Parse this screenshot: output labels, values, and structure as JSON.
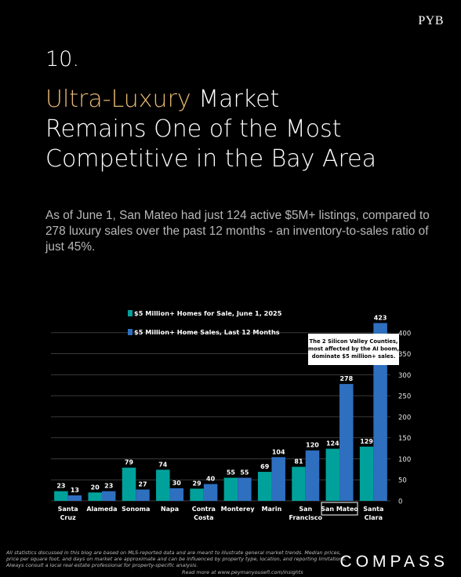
{
  "brand": {
    "top_logo": "PYB",
    "bottom_logo": "COMPASS"
  },
  "header": {
    "number": "10.",
    "title_accent": "Ultra-Luxury",
    "title_rest_1": " Market",
    "title_line2": "Remains One of the Most",
    "title_line3": "Competitive in the Bay Area"
  },
  "subtitle": "As of June 1, San Mateo had just 124 active $5M+ listings, compared to 278 luxury sales over the past 12 months - an inventory-to-sales ratio of just 45%.",
  "chart_data": {
    "type": "bar",
    "categories": [
      "Santa Cruz",
      "Alameda",
      "Sonoma",
      "Napa",
      "Contra Costa",
      "Monterey",
      "Marin",
      "San Francisco",
      "San Mateo",
      "Santa Clara"
    ],
    "category_lines": [
      [
        "Santa",
        "Cruz"
      ],
      [
        "Alameda"
      ],
      [
        "Sonoma"
      ],
      [
        "Napa"
      ],
      [
        "Contra",
        "Costa"
      ],
      [
        "Monterey"
      ],
      [
        "Marin"
      ],
      [
        "San",
        "Francisco"
      ],
      [
        "San Mateo"
      ],
      [
        "Santa",
        "Clara"
      ]
    ],
    "series": [
      {
        "name": "$5 Million+ Homes for Sale, June 1, 2025",
        "values": [
          23,
          20,
          79,
          74,
          29,
          55,
          69,
          81,
          124,
          129
        ],
        "color": "#00a19b"
      },
      {
        "name": "$5 Million+ Home Sales, Last 12 Months",
        "values": [
          13,
          23,
          27,
          30,
          40,
          55,
          104,
          120,
          278,
          423
        ],
        "color": "#2f6fbf"
      }
    ],
    "ylim": [
      0,
      450
    ],
    "yticks": [
      0,
      50,
      100,
      150,
      200,
      250,
      300,
      350,
      400
    ],
    "grid": true,
    "legend_position": "top-left",
    "highlighted_category": "San Mateo",
    "annotation": "The 2 Silicon Valley Counties, most affected by the AI boom, dominate $5 million+ sales.",
    "axis_position": "right"
  },
  "footer": {
    "disclaimer": "All statistics discussed in this blog are based on MLS-reported data and are meant to illustrate general market trends. Median prices, price per square foot, and days on market are approximate and can be influenced by property type, location, and reporting limitations. Always consult a local real estate professional for property-specific analysis.",
    "read_more": "Read more at www.peymanyousefi.com/insights"
  }
}
